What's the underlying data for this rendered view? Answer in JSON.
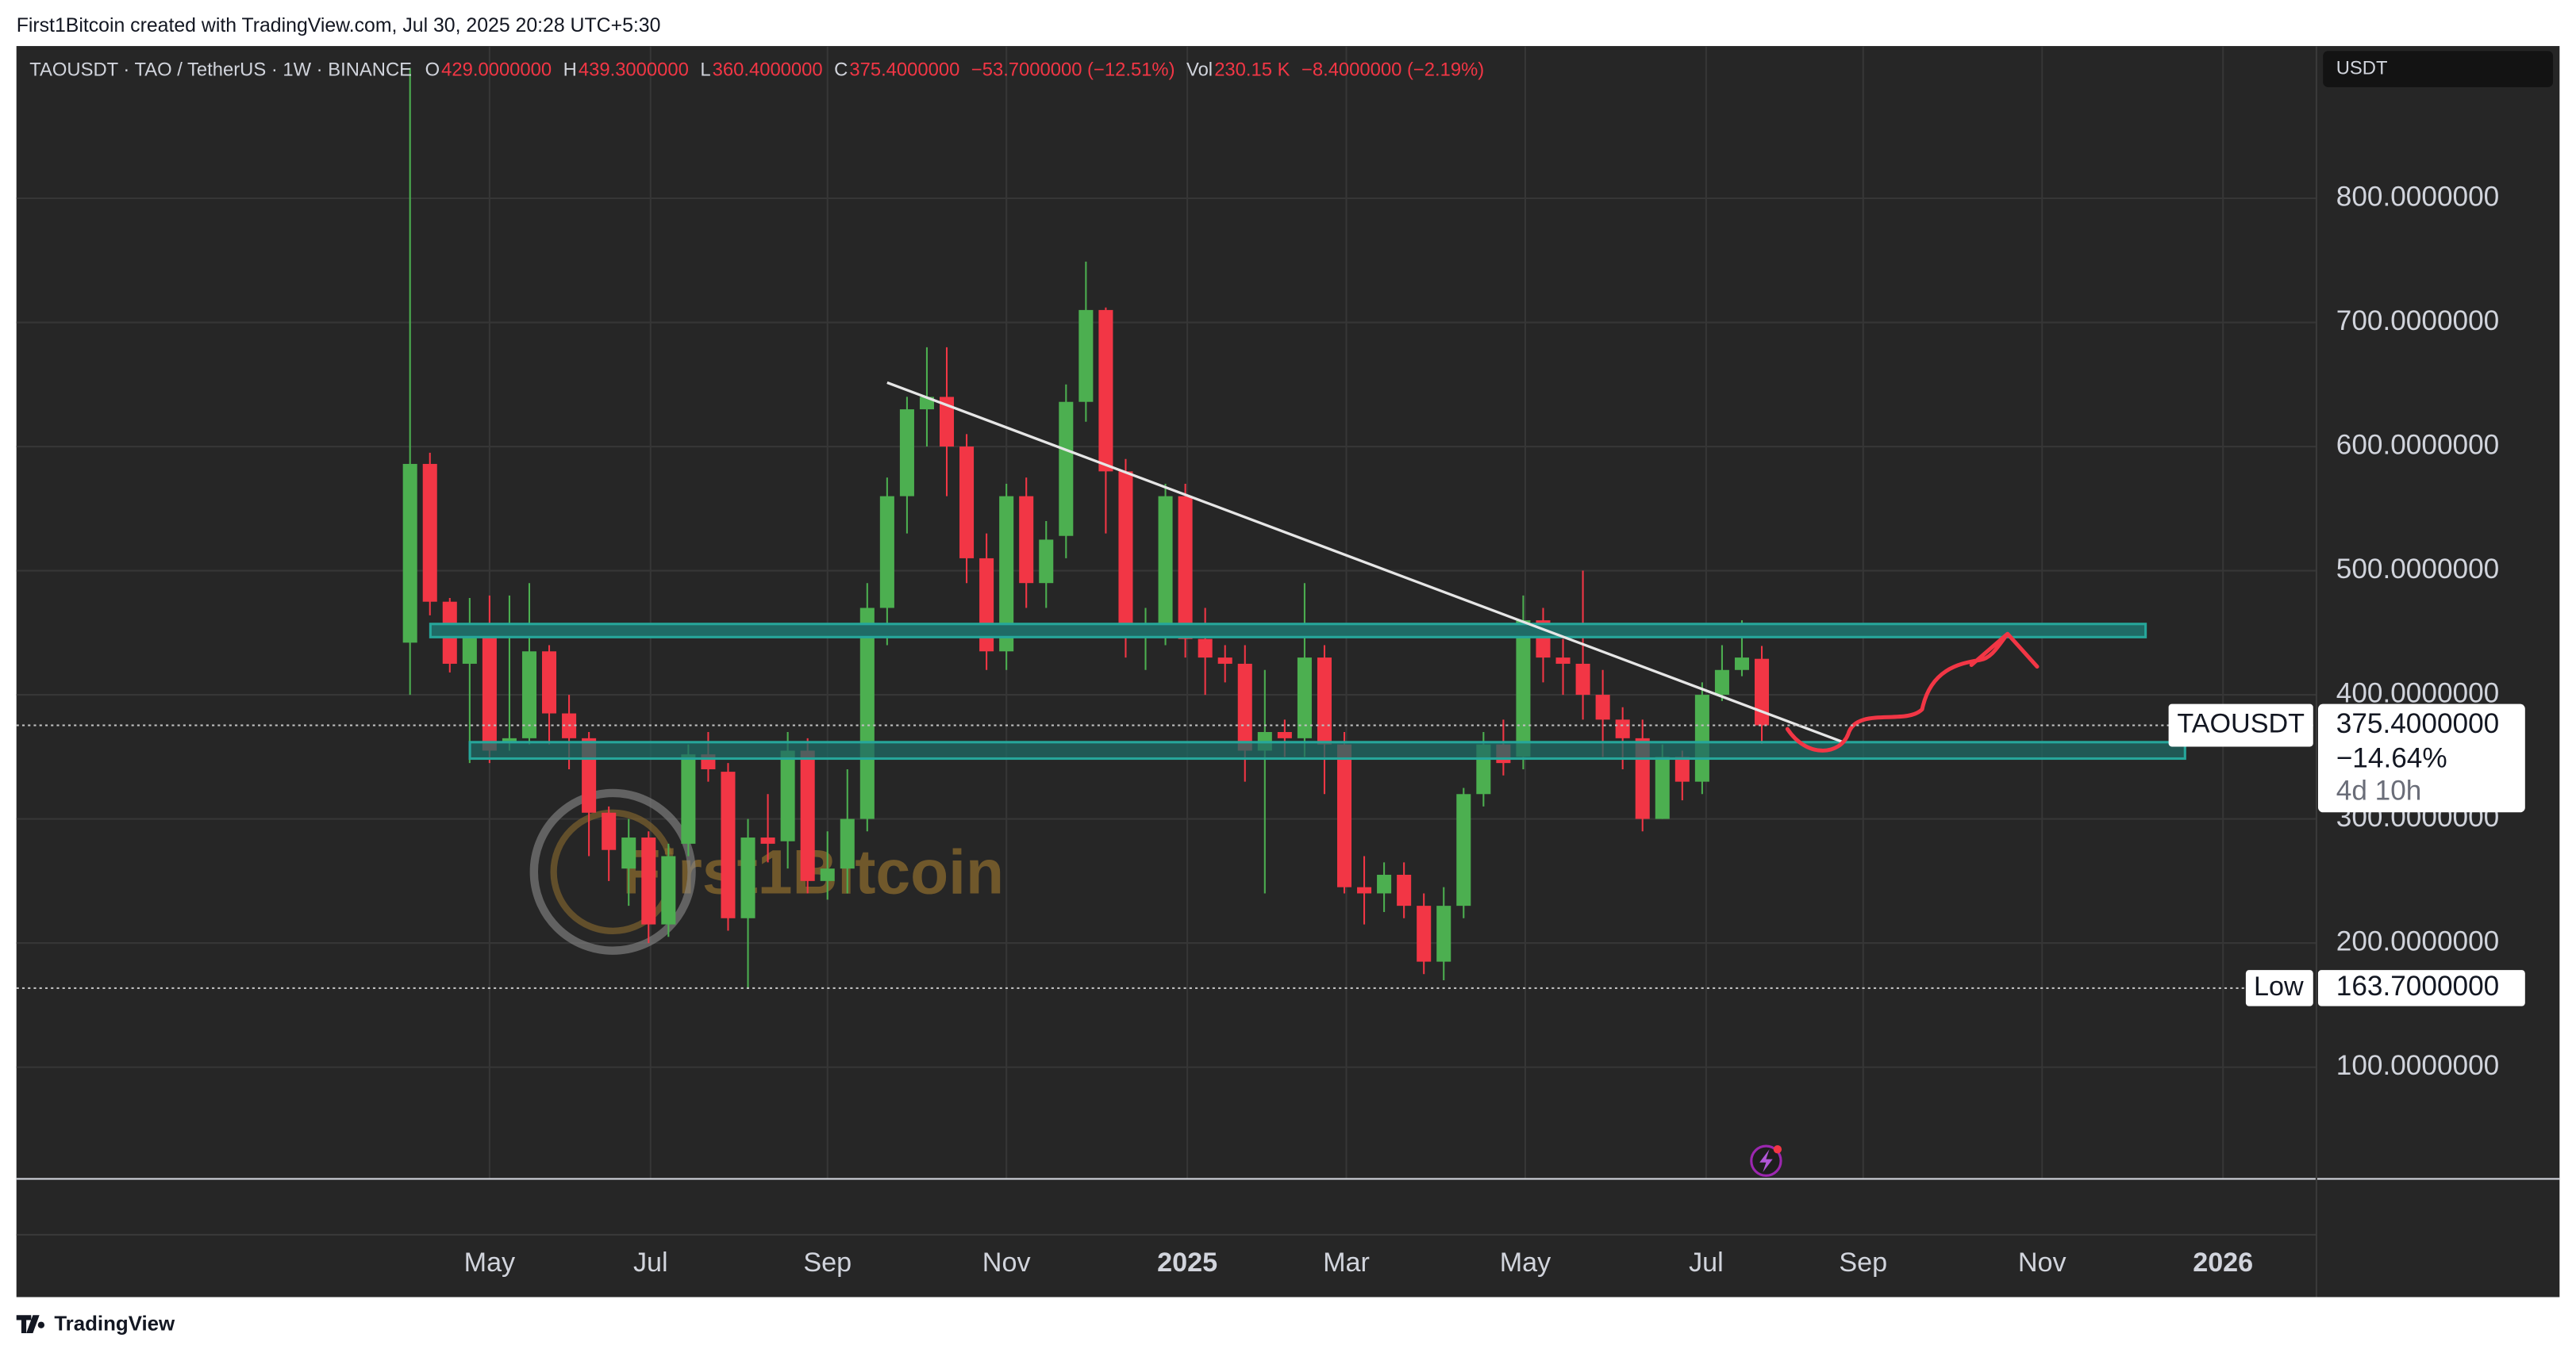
{
  "credit": "First1Bitcoin created with TradingView.com, Jul 30, 2025 20:28 UTC+5:30",
  "footer": "TradingView",
  "chart_data": {
    "type": "candlestick",
    "legend": {
      "symbol": "TAOUSDT · TAO / TetherUS · 1W · BINANCE",
      "o_label": "O",
      "o": "429.0000000",
      "h_label": "H",
      "h": "439.3000000",
      "l_label": "L",
      "l": "360.4000000",
      "c_label": "C",
      "c": "375.4000000",
      "change": "−53.7000000 (−12.51%)",
      "vol_label": "Vol",
      "vol": "230.15 K",
      "vol_change": "−8.4000000 (−2.19%)"
    },
    "currency": "USDT",
    "watermark": "First1Bitcoin",
    "categories": [
      null,
      null,
      null,
      null,
      null,
      null,
      null,
      null,
      null,
      null,
      null,
      null,
      null,
      null,
      null,
      null,
      null,
      null,
      null,
      null,
      null,
      null,
      null,
      null,
      null,
      null,
      null,
      null,
      null,
      null,
      null,
      null,
      null,
      null,
      null,
      null,
      null,
      null,
      null,
      null,
      null,
      null,
      null,
      null,
      null,
      null,
      null,
      null,
      null,
      null,
      null,
      null,
      null,
      null,
      null,
      null,
      null,
      null,
      null,
      null,
      null,
      null,
      null,
      null,
      null,
      null,
      null,
      null,
      null
    ],
    "series": [
      {
        "name": "TAOUSDT",
        "up_color": "#4caf50",
        "down_color": "#f23645",
        "open": [
          442,
          586,
          475,
          425,
          455,
          362,
          365,
          435,
          385,
          365,
          305,
          260,
          285,
          215,
          280,
          352,
          338,
          220,
          285,
          282,
          355,
          250,
          260,
          300,
          470,
          560,
          630,
          640,
          600,
          510,
          435,
          560,
          490,
          528,
          636,
          710,
          580,
          450,
          455,
          560,
          445,
          430,
          425,
          355,
          370,
          365,
          430,
          360,
          245,
          240,
          255,
          230,
          185,
          230,
          320,
          360,
          350,
          460,
          430,
          425,
          400,
          380,
          365,
          300,
          350,
          330,
          400,
          420,
          429
        ],
        "high": [
          905,
          595,
          478,
          478,
          480,
          480,
          490,
          440,
          400,
          370,
          310,
          300,
          290,
          280,
          360,
          370,
          345,
          300,
          320,
          370,
          365,
          290,
          340,
          490,
          575,
          640,
          680,
          680,
          610,
          530,
          570,
          575,
          540,
          650,
          749,
          712,
          590,
          470,
          570,
          570,
          470,
          440,
          440,
          420,
          380,
          490,
          440,
          370,
          270,
          265,
          265,
          240,
          245,
          325,
          370,
          380,
          480,
          470,
          445,
          500,
          420,
          390,
          380,
          360,
          355,
          410,
          440,
          460,
          439.3
        ],
        "low": [
          400,
          464,
          418,
          345,
          345,
          355,
          360,
          360,
          340,
          270,
          250,
          230,
          200,
          205,
          270,
          330,
          210,
          163.7,
          265,
          260,
          240,
          235,
          240,
          290,
          440,
          530,
          600,
          560,
          490,
          420,
          420,
          470,
          470,
          510,
          620,
          530,
          430,
          420,
          440,
          430,
          400,
          410,
          330,
          240,
          350,
          350,
          320,
          240,
          215,
          225,
          220,
          175,
          170,
          220,
          310,
          335,
          340,
          410,
          400,
          380,
          350,
          340,
          290,
          300,
          315,
          320,
          395,
          415,
          360.4
        ],
        "close": [
          586,
          475,
          425,
          455,
          355,
          365,
          435,
          385,
          365,
          305,
          275,
          285,
          215,
          270,
          352,
          340,
          220,
          285,
          280,
          355,
          250,
          260,
          300,
          470,
          560,
          630,
          640,
          600,
          510,
          435,
          560,
          490,
          525,
          636,
          710,
          580,
          450,
          455,
          560,
          445,
          430,
          425,
          355,
          370,
          365,
          430,
          360,
          245,
          240,
          255,
          230,
          185,
          230,
          320,
          360,
          345,
          460,
          430,
          425,
          400,
          380,
          365,
          300,
          350,
          330,
          400,
          420,
          430,
          375.4
        ]
      }
    ],
    "ylim": [
      10,
      920
    ],
    "yticks": [
      {
        "value": 100,
        "label": "100.0000000"
      },
      {
        "value": 200,
        "label": "200.0000000"
      },
      {
        "value": 300,
        "label": "300.0000000"
      },
      {
        "value": 400,
        "label": "400.0000000"
      },
      {
        "value": 500,
        "label": "500.0000000"
      },
      {
        "value": 600,
        "label": "600.0000000"
      },
      {
        "value": 700,
        "label": "700.0000000"
      },
      {
        "value": 800,
        "label": "800.0000000"
      }
    ],
    "xlim": [
      -19.8,
      95.9
    ],
    "xticks": [
      {
        "value": 4,
        "label": "May"
      },
      {
        "value": 12.1,
        "label": "Jul"
      },
      {
        "value": 21,
        "label": "Sep"
      },
      {
        "value": 30,
        "label": "Nov"
      },
      {
        "value": 39.1,
        "label": "2025"
      },
      {
        "value": 47.1,
        "label": "Mar"
      },
      {
        "value": 56.1,
        "label": "May"
      },
      {
        "value": 65.2,
        "label": "Jul"
      },
      {
        "value": 73.1,
        "label": "Sep"
      },
      {
        "value": 82.1,
        "label": "Nov"
      },
      {
        "value": 91.2,
        "label": "2026"
      }
    ],
    "grid": true,
    "last_price": {
      "label": "375.4000000",
      "change": "−14.64%",
      "countdown": "4d 10h"
    },
    "low": {
      "name": "Low",
      "value": 163.7,
      "label": "163.7000000"
    }
  }
}
